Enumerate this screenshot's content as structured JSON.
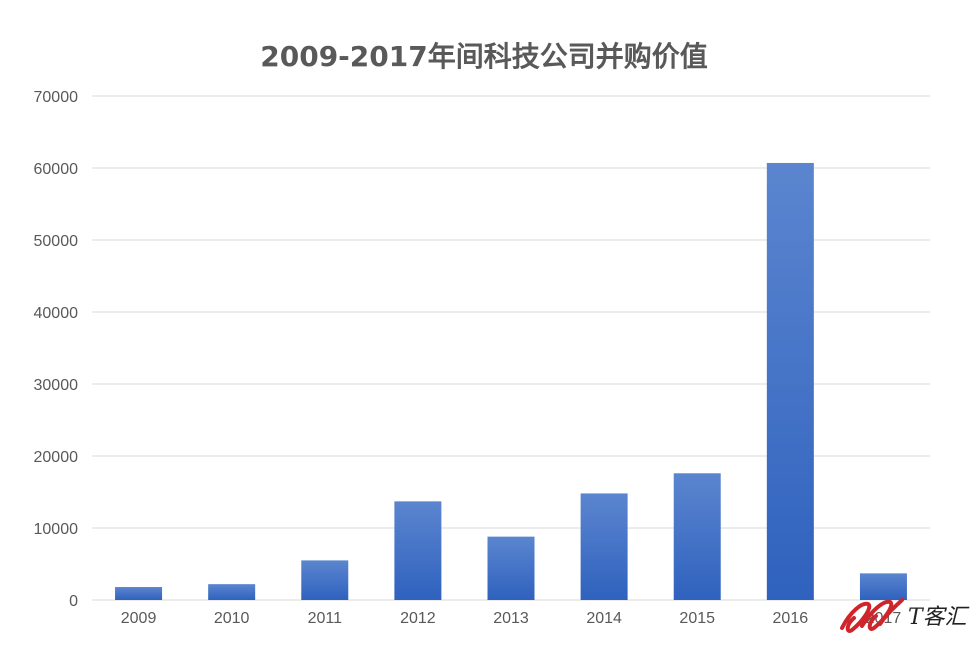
{
  "chart_data": {
    "type": "bar",
    "title": "2009-2017年间科技公司并购价值",
    "xlabel": "",
    "ylabel": "",
    "categories": [
      "2009",
      "2010",
      "2011",
      "2012",
      "2013",
      "2014",
      "2015",
      "2016",
      "2017"
    ],
    "values": [
      1800,
      2200,
      5500,
      13700,
      8800,
      14800,
      17600,
      60700,
      3700
    ],
    "ylim": [
      0,
      70000
    ],
    "yticks": [
      "0",
      "10000",
      "20000",
      "30000",
      "40000",
      "50000",
      "60000",
      "70000"
    ],
    "grid": true,
    "legend": "none",
    "colors": {
      "bar_top": "#5b85cf",
      "bar_bottom": "#2f62be",
      "grid": "#d9d9d9",
      "text": "#595959"
    }
  },
  "watermark": {
    "text": "T客汇",
    "color": "#d0232a"
  }
}
